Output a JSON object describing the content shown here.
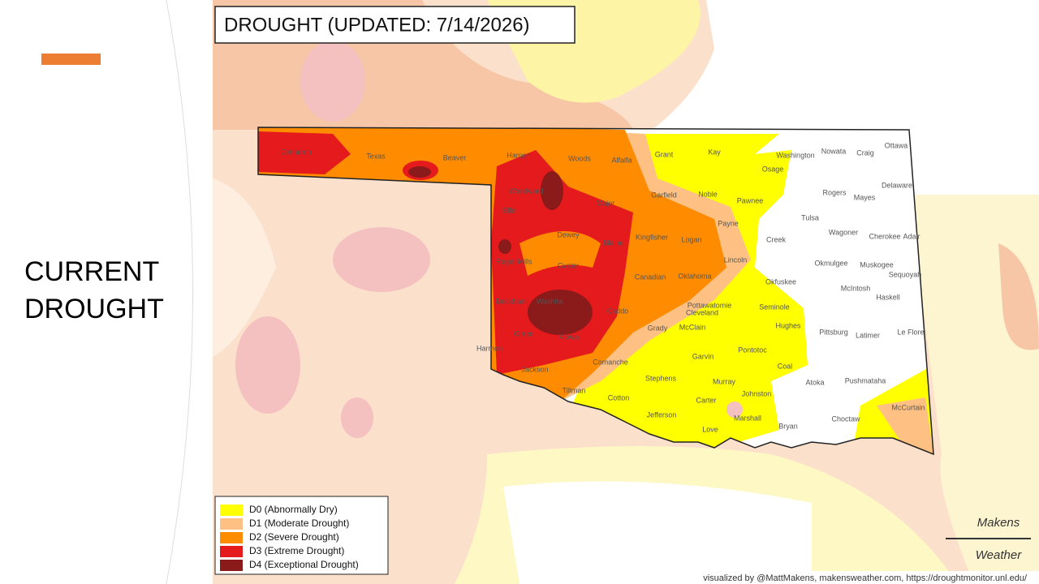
{
  "slide": {
    "title": "CURRENT DROUGHT"
  },
  "map": {
    "title": "DROUGHT (UPDATED: 7/14/2026)",
    "legend": [
      "D0 (Abnormally Dry)",
      "D1 (Moderate Drought)",
      "D2 (Severe Drought)",
      "D3 (Extreme Drought)",
      "D4 (Exceptional Drought)"
    ],
    "counties": [
      "Cimarron",
      "Texas",
      "Beaver",
      "Harper",
      "Woods",
      "Alfalfa",
      "Grant",
      "Kay",
      "Washington",
      "Nowata",
      "Craig",
      "Ottawa",
      "Osage",
      "Delaware",
      "Woodward",
      "Major",
      "Garfield",
      "Noble",
      "Pawnee",
      "Rogers",
      "Mayes",
      "Ellis",
      "Tulsa",
      "Dewey",
      "Blaine",
      "Kingfisher",
      "Logan",
      "Payne",
      "Wagoner",
      "Cherokee",
      "Adair",
      "Creek",
      "Roger Mills",
      "Custer",
      "Lincoln",
      "Okmulgee",
      "Muskogee",
      "Canadian",
      "Oklahoma",
      "Sequoyah",
      "Okfuskee",
      "McIntosh",
      "Beckham",
      "Washita",
      "Caddo",
      "Pottawatomie",
      "Cleveland",
      "Seminole",
      "Haskell",
      "Grady",
      "McClain",
      "Hughes",
      "Pittsburg",
      "Latimer",
      "Le Flore",
      "Greer",
      "Kiowa",
      "Harmon",
      "Pontotoc",
      "Comanche",
      "Garvin",
      "Coal",
      "Jackson",
      "Stephens",
      "Murray",
      "Atoka",
      "Pushmataha",
      "Tillman",
      "Cotton",
      "Carter",
      "Johnston",
      "McCurtain",
      "Jefferson",
      "Marshall",
      "Bryan",
      "Choctaw",
      "Love"
    ],
    "credit": "visualized by @MattMakens, makensweather.com, https://droughtmonitor.unl.edu/",
    "logo": [
      "Makens",
      "Weather"
    ]
  }
}
